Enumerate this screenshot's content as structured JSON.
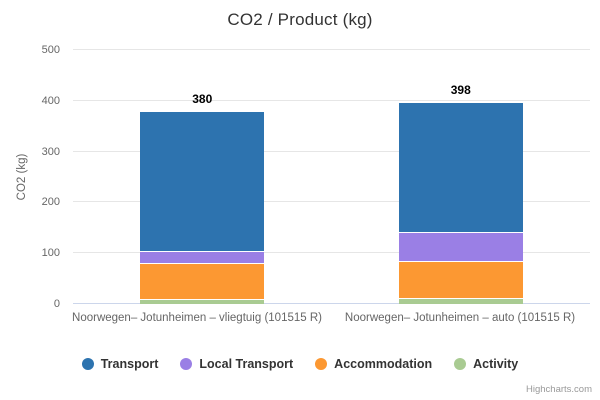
{
  "title": "CO2 / Product (kg)",
  "yaxis": {
    "title": "CO2 (kg)"
  },
  "credits": "Highcharts.com",
  "chart_data": {
    "type": "bar",
    "stacked": true,
    "title": "CO2 / Product (kg)",
    "categories": [
      "Noorwegen– Jotunheimen – vliegtuig (101515 R)",
      "Noorwegen– Jotunheimen – auto (101515 R)"
    ],
    "series": [
      {
        "name": "Transport",
        "color": "#2d73af",
        "values": [
          275,
          256
        ]
      },
      {
        "name": "Local Transport",
        "color": "#9a7fe5",
        "values": [
          25,
          58
        ]
      },
      {
        "name": "Accommodation",
        "color": "#fc9832",
        "values": [
          70,
          73
        ]
      },
      {
        "name": "Activity",
        "color": "#a9cb92",
        "values": [
          10,
          11
        ]
      }
    ],
    "stack_order_bottom_to_top": [
      "Activity",
      "Accommodation",
      "Local Transport",
      "Transport"
    ],
    "stack_totals": [
      380,
      398
    ],
    "xlabel": "",
    "ylabel": "CO2 (kg)",
    "ylim": [
      0,
      500
    ],
    "yticks": [
      0,
      100,
      200,
      300,
      400,
      500
    ],
    "grid": true,
    "legend_position": "bottom"
  }
}
